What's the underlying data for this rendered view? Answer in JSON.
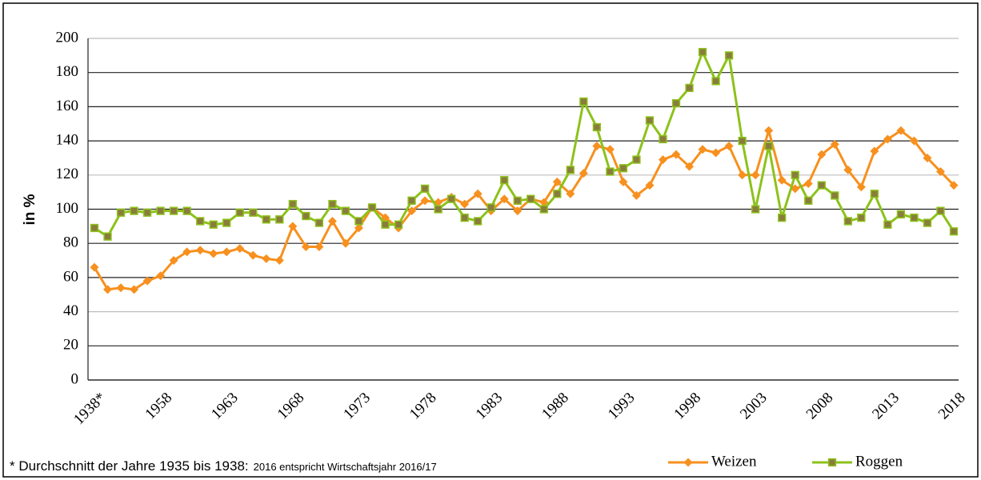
{
  "chart_data": {
    "type": "line",
    "y_label": "in %",
    "footnote": "* Durchschnitt der Jahre 1935 bis 1938:",
    "footnote_small": "2016 entspricht Wirtschaftsjahr 2016/17",
    "categories": [
      "1938*",
      null,
      null,
      null,
      null,
      "1958",
      null,
      null,
      null,
      null,
      "1963",
      null,
      null,
      null,
      null,
      "1968",
      null,
      null,
      null,
      null,
      "1973",
      null,
      null,
      null,
      null,
      "1978",
      null,
      null,
      null,
      null,
      "1983",
      null,
      null,
      null,
      null,
      "1988",
      null,
      null,
      null,
      null,
      "1993",
      null,
      null,
      null,
      null,
      "1998",
      null,
      null,
      null,
      null,
      "2003",
      null,
      null,
      null,
      null,
      "2008",
      null,
      null,
      null,
      null,
      "2013",
      null,
      null,
      null,
      null,
      "2018"
    ],
    "series": [
      {
        "name": "Weizen",
        "color": "#f7901e",
        "marker": "diamond",
        "marker_color": "#f7901e",
        "values": [
          66,
          53,
          54,
          53,
          58,
          61,
          70,
          75,
          76,
          74,
          75,
          77,
          73,
          71,
          70,
          90,
          78,
          78,
          93,
          80,
          89,
          101,
          95,
          89,
          99,
          105,
          104,
          107,
          103,
          109,
          99,
          106,
          99,
          106,
          104,
          116,
          109,
          121,
          137,
          135,
          116,
          108,
          114,
          129,
          132,
          125,
          135,
          133,
          137,
          120,
          120,
          146,
          117,
          112,
          115,
          132,
          138,
          123,
          113,
          134,
          141,
          146,
          140,
          130,
          122,
          114
        ]
      },
      {
        "name": "Roggen",
        "color": "#8cc21a",
        "marker": "square",
        "marker_color": "#8a7d3c",
        "values": [
          89,
          84,
          98,
          99,
          98,
          99,
          99,
          99,
          93,
          91,
          92,
          98,
          98,
          94,
          94,
          103,
          96,
          92,
          103,
          99,
          93,
          101,
          91,
          91,
          105,
          112,
          100,
          106,
          95,
          93,
          101,
          117,
          105,
          106,
          100,
          109,
          123,
          163,
          148,
          122,
          124,
          129,
          152,
          141,
          162,
          171,
          192,
          175,
          190,
          140,
          100,
          137,
          95,
          120,
          105,
          114,
          108,
          93,
          95,
          109,
          91,
          97,
          95,
          92,
          99,
          87
        ]
      }
    ],
    "ylim": [
      0,
      200
    ],
    "yticks": [
      0,
      20,
      40,
      60,
      80,
      100,
      120,
      140,
      160,
      180,
      200
    ],
    "grid": true
  }
}
